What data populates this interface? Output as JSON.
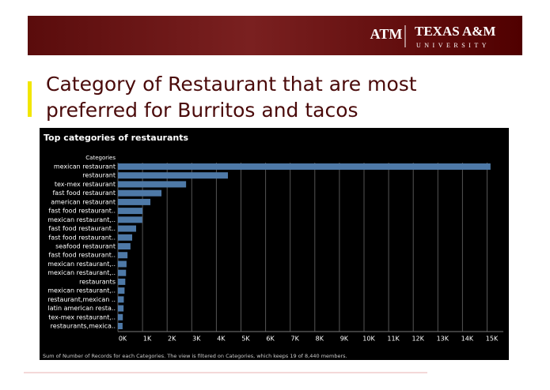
{
  "header": {
    "logo_mark": "ATM",
    "name": "TEXAS A&M",
    "subname": "UNIVERSITY"
  },
  "slide_title": [
    "Category of Restaurant that are most",
    "preferred for Burritos and tacos"
  ],
  "chart_data": {
    "type": "bar",
    "orientation": "horizontal",
    "title": "Top categories of restaurants",
    "y_label": "Categories",
    "categories": [
      "mexican restaurant",
      "restaurant",
      "tex-mex restaurant",
      "fast food restaurant",
      "american restaurant",
      "fast food restaurant..",
      "mexican restaurant,..",
      "fast food restaurant..",
      "fast food restaurant..",
      "seafood restaurant",
      "fast food restaurant..",
      "mexican restaurant,..",
      "mexican restaurant,..",
      "restaurants",
      "mexican restaurant,..",
      "restaurant,mexican ..",
      "latin american resta..",
      "tex-mex restaurant,..",
      "restaurants,mexica.."
    ],
    "values": [
      15140,
      4470,
      2770,
      1770,
      1320,
      1000,
      990,
      740,
      580,
      510,
      390,
      350,
      330,
      300,
      270,
      240,
      230,
      200,
      190
    ],
    "color": "#4e79a7",
    "xlim": [
      0,
      15500
    ],
    "xticks": [
      {
        "value": 0,
        "label": "0K"
      },
      {
        "value": 1000,
        "label": "1K"
      },
      {
        "value": 2000,
        "label": "2K"
      },
      {
        "value": 3000,
        "label": "3K"
      },
      {
        "value": 4000,
        "label": "4K"
      },
      {
        "value": 5000,
        "label": "5K"
      },
      {
        "value": 6000,
        "label": "6K"
      },
      {
        "value": 7000,
        "label": "7K"
      },
      {
        "value": 8000,
        "label": "8K"
      },
      {
        "value": 9000,
        "label": "9K"
      },
      {
        "value": 10000,
        "label": "10K"
      },
      {
        "value": 11000,
        "label": "11K"
      },
      {
        "value": 12000,
        "label": "12K"
      },
      {
        "value": 13000,
        "label": "13K"
      },
      {
        "value": 14000,
        "label": "14K"
      },
      {
        "value": 15000,
        "label": "15K"
      }
    ],
    "grid": true,
    "footnote": "Sum of Number of Records for each Categories. The view is filtered on Categories, which keeps 19 of 8,440 members."
  }
}
